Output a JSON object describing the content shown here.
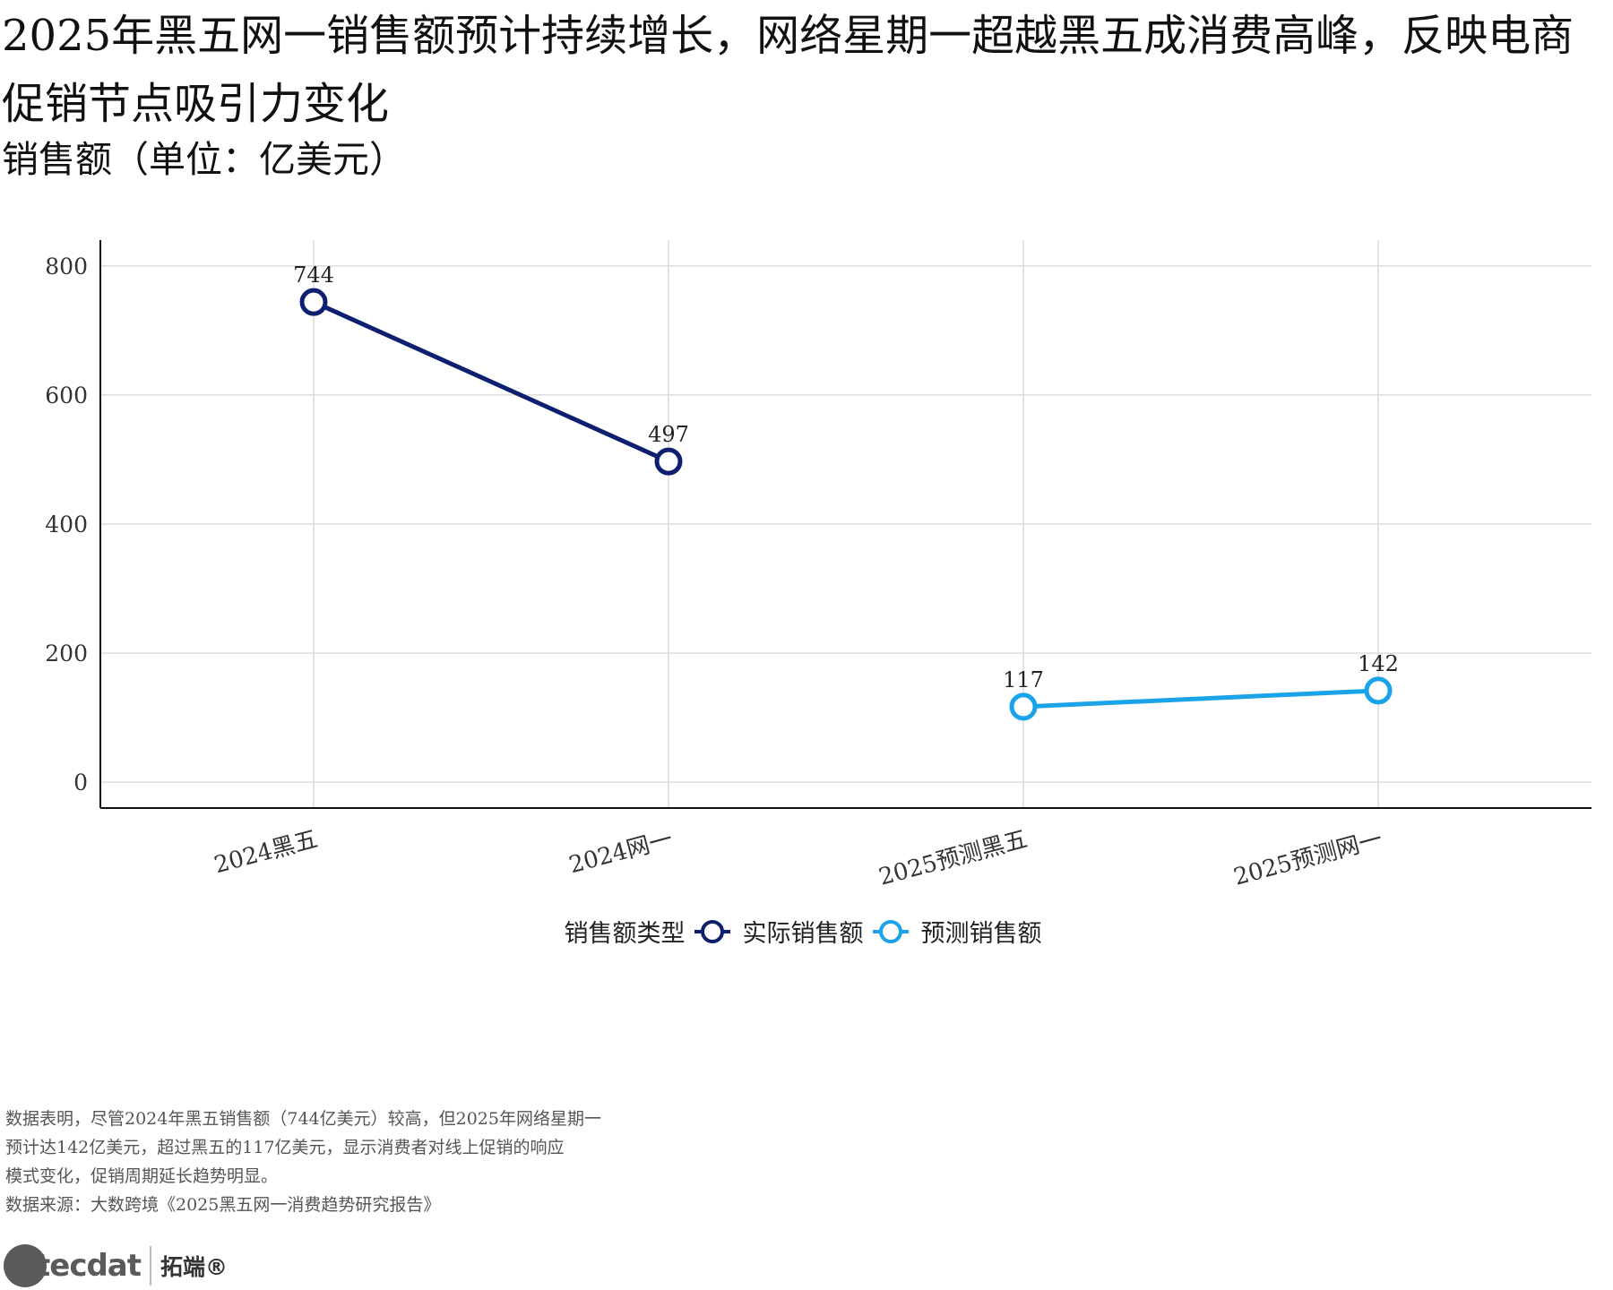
{
  "title": "2025年黑五网一销售额预计持续增长，网络星期一超越黑五成消费高峰，反映电商促销节点吸引力变化",
  "subtitle": "销售额（单位：亿美元）",
  "chart_data": {
    "type": "line",
    "categories": [
      "2024黑五",
      "2024网一",
      "2025预测黑五",
      "2025预测网一"
    ],
    "ylim": [
      -40,
      840
    ],
    "yticks": [
      0,
      200,
      400,
      600,
      800
    ],
    "grid": true,
    "legend_position": "bottom",
    "legend_title": "销售额类型",
    "series": [
      {
        "name": "实际销售额",
        "color": "#0d1f6e",
        "points": [
          {
            "x": "2024黑五",
            "y": 744
          },
          {
            "x": "2024网一",
            "y": 497
          }
        ]
      },
      {
        "name": "预测销售额",
        "color": "#1ba3ea",
        "points": [
          {
            "x": "2025预测黑五",
            "y": 117
          },
          {
            "x": "2025预测网一",
            "y": 142
          }
        ]
      }
    ]
  },
  "note": {
    "lines": [
      "数据表明，尽管2024年黑五销售额（744亿美元）较高，但2025年网络星期一",
      "预计达142亿美元，超过黑五的117亿美元，显示消费者对线上促销的响应",
      "模式变化，促销周期延长趋势明显。",
      "数据来源：大数跨境《2025黑五网一消费趋势研究报告》"
    ]
  },
  "logo": {
    "mark": "tecdat",
    "chinese": "拓端®"
  }
}
